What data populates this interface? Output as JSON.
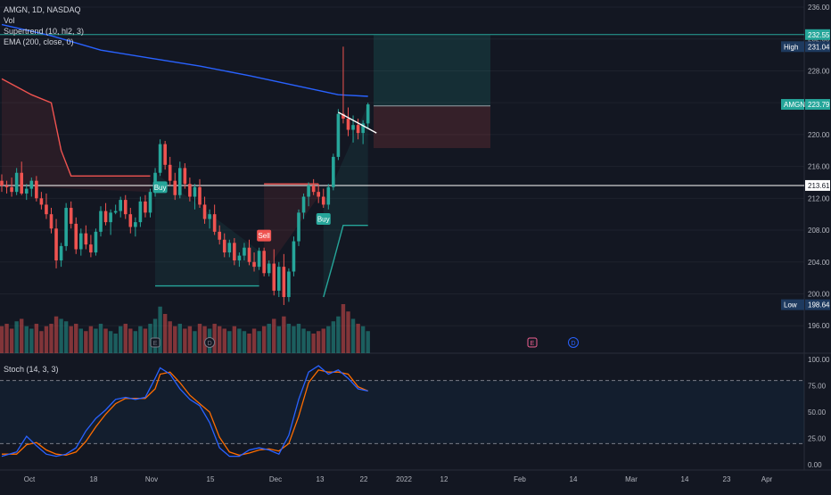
{
  "legend": {
    "title_line": "AMGN, 1D, NASDAQ",
    "vol": "Vol",
    "supertrend": "Supertrend (10, hl2, 3)",
    "ema": "EMA (200, close, 0)",
    "stoch": "Stoch (14, 3, 3)"
  },
  "badges": {
    "level_top": "232.55",
    "high_label": "High",
    "high_value": "231.04",
    "ticker": "AMGN",
    "last_price": "223.79",
    "level_mid": "213.61",
    "low_label": "Low",
    "low_value": "198.64"
  },
  "signals": {
    "buy": "Buy",
    "sell": "Sell"
  },
  "event_markers": {
    "earnings": "E",
    "dividend": "D"
  },
  "colors": {
    "background": "#131722",
    "up": "#26a69a",
    "down": "#ef5350",
    "ema": "#2962ff",
    "stoch_k": "#2962ff",
    "stoch_d": "#ff6d00",
    "level": "#ffffff",
    "level_top": "#26a69a"
  },
  "chart_data": [
    {
      "type": "candlestick",
      "symbol": "AMGN",
      "interval": "1D",
      "exchange": "NASDAQ",
      "ylim": [
        195,
        237
      ],
      "y_ticks": [
        196,
        200,
        204,
        208,
        212,
        216,
        220,
        224,
        228,
        232,
        236
      ],
      "x_ticks": [
        "Oct",
        "18",
        "Nov",
        "15",
        "Dec",
        "13",
        "22",
        "2022",
        "12",
        "Feb",
        "14",
        "Mar",
        "14",
        "23",
        "Apr"
      ],
      "candles": [
        {
          "o": 214.2,
          "h": 215.0,
          "l": 212.8,
          "c": 213.6
        },
        {
          "o": 213.6,
          "h": 214.2,
          "l": 212.6,
          "c": 213.4
        },
        {
          "o": 213.4,
          "h": 214.6,
          "l": 212.2,
          "c": 212.8
        },
        {
          "o": 212.8,
          "h": 215.8,
          "l": 212.4,
          "c": 215.2
        },
        {
          "o": 215.2,
          "h": 216.6,
          "l": 212.4,
          "c": 212.6
        },
        {
          "o": 212.6,
          "h": 213.8,
          "l": 211.8,
          "c": 213.2
        },
        {
          "o": 213.2,
          "h": 214.6,
          "l": 212.2,
          "c": 214.2
        },
        {
          "o": 214.2,
          "h": 214.8,
          "l": 211.6,
          "c": 212.0
        },
        {
          "o": 212.0,
          "h": 212.8,
          "l": 210.6,
          "c": 211.2
        },
        {
          "o": 211.2,
          "h": 212.6,
          "l": 209.4,
          "c": 210.0
        },
        {
          "o": 210.0,
          "h": 210.8,
          "l": 207.6,
          "c": 208.2
        },
        {
          "o": 208.2,
          "h": 209.4,
          "l": 203.2,
          "c": 204.2
        },
        {
          "o": 204.2,
          "h": 206.4,
          "l": 203.4,
          "c": 206.0
        },
        {
          "o": 206.0,
          "h": 211.4,
          "l": 205.4,
          "c": 210.8
        },
        {
          "o": 210.8,
          "h": 211.6,
          "l": 208.2,
          "c": 208.8
        },
        {
          "o": 208.8,
          "h": 209.6,
          "l": 205.0,
          "c": 205.6
        },
        {
          "o": 205.6,
          "h": 208.2,
          "l": 204.8,
          "c": 207.6
        },
        {
          "o": 207.6,
          "h": 208.6,
          "l": 205.6,
          "c": 206.2
        },
        {
          "o": 206.2,
          "h": 207.4,
          "l": 204.6,
          "c": 205.2
        },
        {
          "o": 205.2,
          "h": 208.2,
          "l": 204.8,
          "c": 207.8
        },
        {
          "o": 207.8,
          "h": 211.0,
          "l": 207.2,
          "c": 210.4
        },
        {
          "o": 210.4,
          "h": 211.4,
          "l": 208.6,
          "c": 209.0
        },
        {
          "o": 209.0,
          "h": 210.6,
          "l": 207.4,
          "c": 210.2
        },
        {
          "o": 210.2,
          "h": 211.2,
          "l": 210.0,
          "c": 210.4
        },
        {
          "o": 210.4,
          "h": 212.2,
          "l": 209.6,
          "c": 211.8
        },
        {
          "o": 211.8,
          "h": 212.4,
          "l": 209.4,
          "c": 210.0
        },
        {
          "o": 210.0,
          "h": 210.8,
          "l": 207.6,
          "c": 208.4
        },
        {
          "o": 208.4,
          "h": 209.6,
          "l": 207.2,
          "c": 209.0
        },
        {
          "o": 209.0,
          "h": 212.2,
          "l": 208.4,
          "c": 211.6
        },
        {
          "o": 211.6,
          "h": 212.4,
          "l": 209.6,
          "c": 210.2
        },
        {
          "o": 210.2,
          "h": 213.2,
          "l": 209.6,
          "c": 212.8
        },
        {
          "o": 212.8,
          "h": 215.8,
          "l": 212.2,
          "c": 215.2
        },
        {
          "o": 215.2,
          "h": 219.4,
          "l": 214.8,
          "c": 218.8
        },
        {
          "o": 218.8,
          "h": 219.2,
          "l": 215.6,
          "c": 216.2
        },
        {
          "o": 216.2,
          "h": 217.2,
          "l": 213.6,
          "c": 214.2
        },
        {
          "o": 214.2,
          "h": 215.2,
          "l": 211.8,
          "c": 212.4
        },
        {
          "o": 212.4,
          "h": 216.6,
          "l": 212.0,
          "c": 215.8
        },
        {
          "o": 215.8,
          "h": 216.4,
          "l": 213.2,
          "c": 213.8
        },
        {
          "o": 213.8,
          "h": 214.6,
          "l": 211.6,
          "c": 212.2
        },
        {
          "o": 212.2,
          "h": 213.8,
          "l": 210.6,
          "c": 213.4
        },
        {
          "o": 213.4,
          "h": 214.4,
          "l": 210.8,
          "c": 211.2
        },
        {
          "o": 211.2,
          "h": 212.2,
          "l": 208.8,
          "c": 209.4
        },
        {
          "o": 209.4,
          "h": 210.6,
          "l": 208.2,
          "c": 210.0
        },
        {
          "o": 210.0,
          "h": 211.2,
          "l": 207.4,
          "c": 207.8
        },
        {
          "o": 207.8,
          "h": 208.6,
          "l": 206.2,
          "c": 206.8
        },
        {
          "o": 206.8,
          "h": 207.6,
          "l": 204.6,
          "c": 205.2
        },
        {
          "o": 205.2,
          "h": 206.8,
          "l": 204.6,
          "c": 206.4
        },
        {
          "o": 206.4,
          "h": 207.0,
          "l": 203.6,
          "c": 204.2
        },
        {
          "o": 204.2,
          "h": 205.2,
          "l": 203.4,
          "c": 204.8
        },
        {
          "o": 204.8,
          "h": 206.4,
          "l": 204.2,
          "c": 205.8
        },
        {
          "o": 205.8,
          "h": 206.8,
          "l": 203.6,
          "c": 204.0
        },
        {
          "o": 204.0,
          "h": 205.2,
          "l": 202.8,
          "c": 203.4
        },
        {
          "o": 203.4,
          "h": 205.8,
          "l": 203.0,
          "c": 205.4
        },
        {
          "o": 205.4,
          "h": 205.8,
          "l": 202.2,
          "c": 202.6
        },
        {
          "o": 202.6,
          "h": 204.2,
          "l": 202.2,
          "c": 203.8
        },
        {
          "o": 203.8,
          "h": 205.6,
          "l": 199.8,
          "c": 200.4
        },
        {
          "o": 200.4,
          "h": 204.0,
          "l": 199.6,
          "c": 203.4
        },
        {
          "o": 203.4,
          "h": 205.0,
          "l": 198.6,
          "c": 199.6
        },
        {
          "o": 199.6,
          "h": 203.2,
          "l": 199.0,
          "c": 202.8
        },
        {
          "o": 202.8,
          "h": 207.2,
          "l": 202.2,
          "c": 206.6
        },
        {
          "o": 206.6,
          "h": 210.6,
          "l": 206.0,
          "c": 210.2
        },
        {
          "o": 210.2,
          "h": 212.6,
          "l": 209.4,
          "c": 212.2
        },
        {
          "o": 212.2,
          "h": 214.0,
          "l": 211.0,
          "c": 213.6
        },
        {
          "o": 213.6,
          "h": 214.4,
          "l": 212.4,
          "c": 212.8
        },
        {
          "o": 212.8,
          "h": 213.8,
          "l": 211.4,
          "c": 212.2
        },
        {
          "o": 212.2,
          "h": 213.2,
          "l": 210.8,
          "c": 211.2
        },
        {
          "o": 211.2,
          "h": 213.8,
          "l": 210.6,
          "c": 213.4
        },
        {
          "o": 213.4,
          "h": 217.6,
          "l": 213.0,
          "c": 217.2
        },
        {
          "o": 217.2,
          "h": 223.2,
          "l": 216.8,
          "c": 222.6
        },
        {
          "o": 222.6,
          "h": 231.04,
          "l": 221.4,
          "c": 222.0
        },
        {
          "o": 222.0,
          "h": 223.4,
          "l": 219.8,
          "c": 220.6
        },
        {
          "o": 220.6,
          "h": 222.4,
          "l": 219.0,
          "c": 221.2
        },
        {
          "o": 221.2,
          "h": 222.0,
          "l": 219.4,
          "c": 220.2
        },
        {
          "o": 220.2,
          "h": 221.8,
          "l": 218.8,
          "c": 221.4
        },
        {
          "o": 221.4,
          "h": 224.0,
          "l": 220.8,
          "c": 223.79
        }
      ],
      "volume_relative": [
        0.55,
        0.6,
        0.5,
        0.65,
        0.7,
        0.55,
        0.5,
        0.6,
        0.45,
        0.55,
        0.6,
        0.75,
        0.7,
        0.65,
        0.55,
        0.6,
        0.5,
        0.45,
        0.55,
        0.5,
        0.6,
        0.5,
        0.45,
        0.4,
        0.55,
        0.6,
        0.5,
        0.45,
        0.55,
        0.5,
        0.6,
        0.7,
        0.95,
        0.8,
        0.65,
        0.55,
        0.6,
        0.5,
        0.55,
        0.45,
        0.6,
        0.55,
        0.5,
        0.6,
        0.55,
        0.5,
        0.45,
        0.55,
        0.5,
        0.45,
        0.4,
        0.5,
        0.45,
        0.55,
        0.6,
        0.7,
        0.55,
        0.75,
        0.6,
        0.55,
        0.6,
        0.5,
        0.45,
        0.4,
        0.45,
        0.5,
        0.55,
        0.65,
        0.75,
        1.0,
        0.85,
        0.7,
        0.6,
        0.55,
        0.45
      ],
      "ema_200": [
        [
          0,
          233.8
        ],
        [
          10,
          232.4
        ],
        [
          20,
          230.6
        ],
        [
          30,
          229.6
        ],
        [
          40,
          228.6
        ],
        [
          50,
          227.4
        ],
        [
          56,
          226.6
        ],
        [
          62,
          225.8
        ],
        [
          68,
          225.0
        ],
        [
          74,
          224.8
        ]
      ],
      "supertrend_down": [
        [
          0,
          227.0
        ],
        [
          3,
          226.0
        ],
        [
          6,
          225.0
        ],
        [
          10,
          224.0
        ],
        [
          12,
          218.0
        ],
        [
          14,
          214.8
        ],
        [
          30,
          214.8
        ]
      ],
      "supertrend_up": [
        [
          31,
          201.0
        ],
        [
          52,
          201.0
        ]
      ],
      "supertrend_down_2": [
        [
          53,
          213.8
        ],
        [
          64,
          213.8
        ]
      ],
      "supertrend_up_2": [
        [
          65,
          199.6
        ],
        [
          67,
          204.0
        ],
        [
          69,
          208.6
        ],
        [
          74,
          208.6
        ]
      ],
      "levels": [
        232.55,
        213.61
      ],
      "position": {
        "target": 232.55,
        "entry": 223.6,
        "stop": 218.3
      },
      "trendline": [
        [
          68,
          222.8
        ],
        [
          75,
          220.2
        ]
      ],
      "signals": [
        {
          "type": "Sell",
          "index": 53
        },
        {
          "type": "Buy",
          "index": 32
        },
        {
          "type": "Buy",
          "index": 65
        }
      ],
      "events": [
        {
          "type": "E",
          "index": 31
        },
        {
          "type": "D",
          "index": 42
        },
        {
          "type": "E",
          "at": "Feb"
        },
        {
          "type": "D",
          "at": "14"
        }
      ]
    },
    {
      "type": "line",
      "name": "Stoch (14, 3, 3)",
      "ylim": [
        0,
        100
      ],
      "y_ticks": [
        0,
        25,
        50,
        75,
        100
      ],
      "bands": [
        20,
        80
      ],
      "k": [
        [
          0,
          8
        ],
        [
          3,
          12
        ],
        [
          5,
          27
        ],
        [
          7,
          18
        ],
        [
          9,
          10
        ],
        [
          11,
          8
        ],
        [
          13,
          10
        ],
        [
          15,
          16
        ],
        [
          17,
          32
        ],
        [
          19,
          44
        ],
        [
          21,
          52
        ],
        [
          23,
          62
        ],
        [
          25,
          64
        ],
        [
          27,
          62
        ],
        [
          29,
          64
        ],
        [
          31,
          82
        ],
        [
          32,
          92
        ],
        [
          34,
          86
        ],
        [
          36,
          72
        ],
        [
          38,
          62
        ],
        [
          40,
          56
        ],
        [
          42,
          40
        ],
        [
          44,
          16
        ],
        [
          46,
          8
        ],
        [
          48,
          8
        ],
        [
          50,
          14
        ],
        [
          52,
          16
        ],
        [
          54,
          14
        ],
        [
          56,
          10
        ],
        [
          58,
          28
        ],
        [
          60,
          62
        ],
        [
          62,
          88
        ],
        [
          64,
          94
        ],
        [
          66,
          86
        ],
        [
          68,
          90
        ],
        [
          70,
          82
        ],
        [
          72,
          72
        ],
        [
          74,
          70
        ]
      ],
      "d": [
        [
          0,
          10
        ],
        [
          3,
          10
        ],
        [
          5,
          19
        ],
        [
          7,
          21
        ],
        [
          9,
          14
        ],
        [
          11,
          10
        ],
        [
          13,
          9
        ],
        [
          15,
          12
        ],
        [
          17,
          22
        ],
        [
          19,
          36
        ],
        [
          21,
          48
        ],
        [
          23,
          58
        ],
        [
          25,
          63
        ],
        [
          27,
          63
        ],
        [
          29,
          63
        ],
        [
          31,
          72
        ],
        [
          32,
          86
        ],
        [
          34,
          88
        ],
        [
          36,
          78
        ],
        [
          38,
          66
        ],
        [
          40,
          58
        ],
        [
          42,
          50
        ],
        [
          44,
          26
        ],
        [
          46,
          12
        ],
        [
          48,
          9
        ],
        [
          50,
          11
        ],
        [
          52,
          14
        ],
        [
          54,
          15
        ],
        [
          56,
          13
        ],
        [
          58,
          20
        ],
        [
          60,
          46
        ],
        [
          62,
          78
        ],
        [
          64,
          90
        ],
        [
          66,
          88
        ],
        [
          68,
          88
        ],
        [
          70,
          86
        ],
        [
          72,
          74
        ],
        [
          74,
          70
        ]
      ]
    }
  ]
}
